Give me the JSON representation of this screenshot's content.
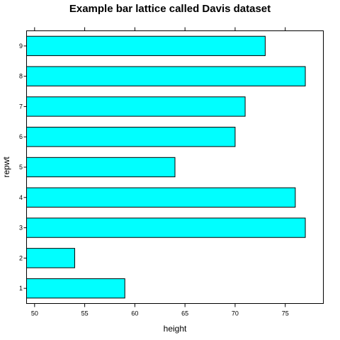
{
  "chart_data": {
    "type": "bar",
    "orientation": "horizontal",
    "title": "Example bar lattice called Davis dataset",
    "xlabel": "height",
    "ylabel": "repwt",
    "categories": [
      "1",
      "2",
      "3",
      "4",
      "5",
      "6",
      "7",
      "8",
      "9"
    ],
    "values": [
      59,
      54,
      77,
      76,
      64,
      70,
      71,
      77,
      73
    ],
    "xlim": [
      49.2,
      78.8
    ],
    "x_ticks": [
      "50",
      "55",
      "60",
      "65",
      "70",
      "75"
    ],
    "bar_color": "#00ffff",
    "bar_border_color": "#000000",
    "grid": false,
    "legend": "none"
  }
}
